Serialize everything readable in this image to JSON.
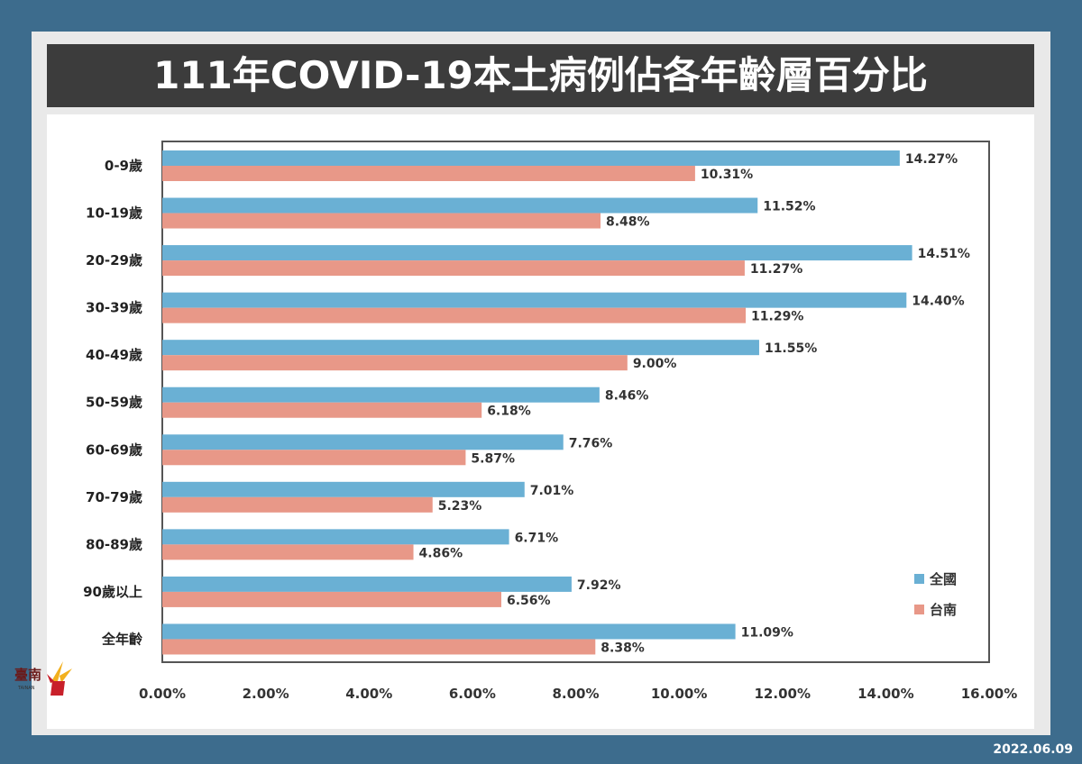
{
  "title": "111年COVID-19本土病例佔各年齡層百分比",
  "date": "2022.06.09",
  "logo": {
    "text": "臺南",
    "subtext": "TAINAN"
  },
  "colors": {
    "national": "#6ab0d4",
    "tainan": "#e89888",
    "title_bg": "#3c3c3c",
    "page_bg": "#3d6c8d"
  },
  "chart_data": {
    "type": "bar",
    "orientation": "horizontal",
    "title": "111年COVID-19本土病例佔各年齡層百分比",
    "categories": [
      "0-9歲",
      "10-19歲",
      "20-29歲",
      "30-39歲",
      "40-49歲",
      "50-59歲",
      "60-69歲",
      "70-79歲",
      "80-89歲",
      "90歲以上",
      "全年齡"
    ],
    "series": [
      {
        "name": "全國",
        "color": "#6ab0d4",
        "values": [
          14.27,
          11.52,
          14.51,
          14.4,
          11.55,
          8.46,
          7.76,
          7.01,
          6.71,
          7.92,
          11.09
        ],
        "labels": [
          "14.27%",
          "11.52%",
          "14.51%",
          "14.40%",
          "11.55%",
          "8.46%",
          "7.76%",
          "7.01%",
          "6.71%",
          "7.92%",
          "11.09%"
        ]
      },
      {
        "name": "台南",
        "color": "#e89888",
        "values": [
          10.31,
          8.48,
          11.27,
          11.29,
          9.0,
          6.18,
          5.87,
          5.23,
          4.86,
          6.56,
          8.38
        ],
        "labels": [
          "10.31%",
          "8.48%",
          "11.27%",
          "11.29%",
          "9.00%",
          "6.18%",
          "5.87%",
          "5.23%",
          "4.86%",
          "6.56%",
          "8.38%"
        ]
      }
    ],
    "xlim": [
      0,
      16
    ],
    "x_ticks": [
      "0.00%",
      "2.00%",
      "4.00%",
      "6.00%",
      "8.00%",
      "10.00%",
      "12.00%",
      "14.00%",
      "16.00%"
    ],
    "xlabel": "",
    "ylabel": "",
    "grid": false,
    "legend_position": "bottom-right"
  }
}
